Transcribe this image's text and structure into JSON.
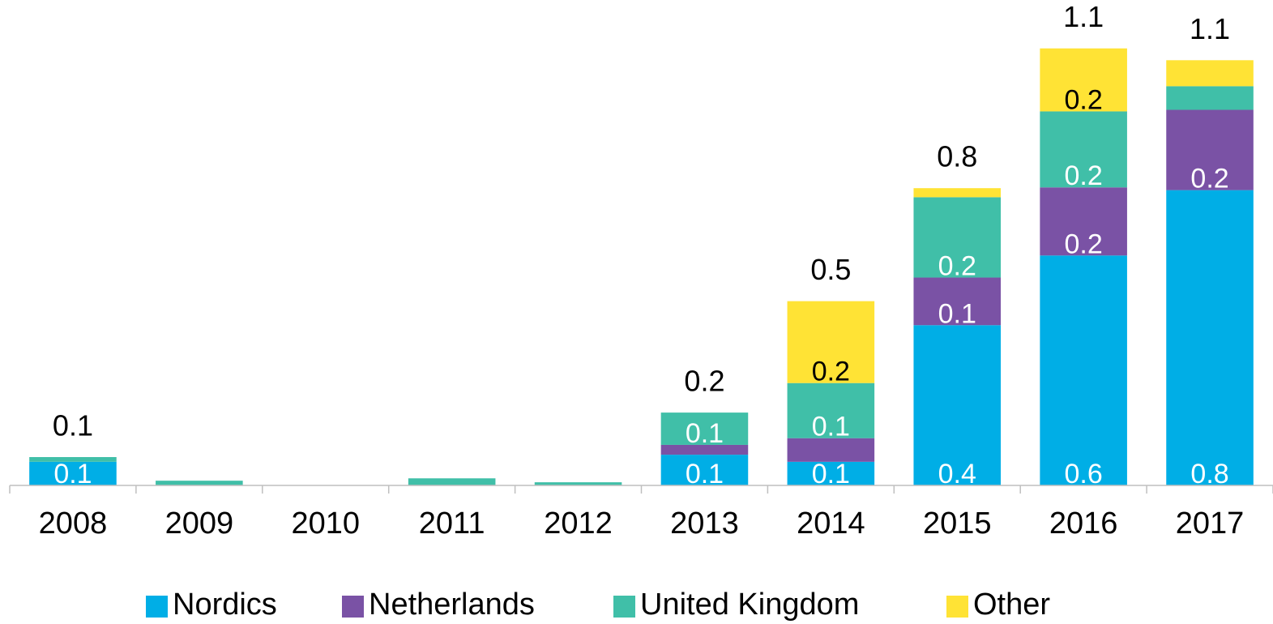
{
  "chart_data": {
    "type": "stacked_bar",
    "categories": [
      "2008",
      "2009",
      "2010",
      "2011",
      "2012",
      "2013",
      "2014",
      "2015",
      "2016",
      "2017"
    ],
    "series": [
      {
        "name": "Nordics",
        "color": "#00aee6",
        "values": [
          0.06,
          0,
          0,
          0,
          0,
          0.078,
          0.06,
          0.407,
          0.584,
          0.75
        ],
        "value_labels": [
          "0.1",
          null,
          null,
          null,
          null,
          "0.1",
          "0.1",
          "0.4",
          "0.6",
          "0.8"
        ]
      },
      {
        "name": "Netherlands",
        "color": "#7a52a5",
        "values": [
          0,
          0,
          0,
          0,
          0,
          0.025,
          0.06,
          0.121,
          0.173,
          0.204
        ],
        "value_labels": [
          null,
          null,
          null,
          null,
          null,
          null,
          null,
          "0.1",
          "0.2",
          "0.2"
        ]
      },
      {
        "name": "United Kingdom",
        "color": "#40bfa8",
        "values": [
          0.012,
          0.012,
          0,
          0.018,
          0.008,
          0.082,
          0.14,
          0.204,
          0.193,
          0.06
        ],
        "value_labels": [
          null,
          null,
          null,
          null,
          null,
          "0.1",
          "0.1",
          "0.2",
          "0.2",
          null
        ]
      },
      {
        "name": "Other",
        "color": "#ffe335",
        "values": [
          0,
          0,
          0,
          0,
          0,
          0,
          0.208,
          0.023,
          0.16,
          0.066
        ],
        "value_labels": [
          null,
          null,
          null,
          null,
          null,
          null,
          "0.2",
          null,
          "0.2",
          null
        ]
      }
    ],
    "totals": [
      0.072,
      null,
      null,
      null,
      null,
      0.185,
      0.468,
      0.755,
      1.11,
      1.08
    ],
    "total_labels": [
      "0.1",
      null,
      null,
      null,
      null,
      "0.2",
      "0.5",
      "0.8",
      "1.1",
      "1.1"
    ],
    "ylim": [
      0,
      1.2
    ]
  }
}
